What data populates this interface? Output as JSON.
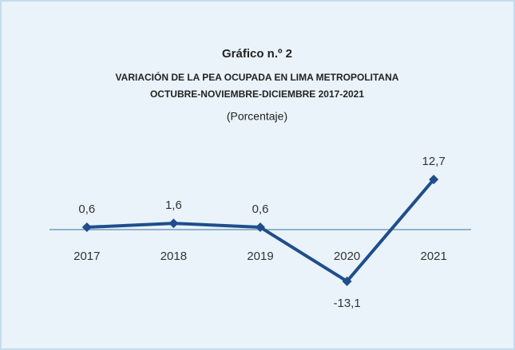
{
  "chart_data": {
    "type": "line",
    "title": "Gráfico n.º 2",
    "subtitle": [
      "VARIACIÓN DE LA PEA OCUPADA EN LIMA METROPOLITANA",
      "OCTUBRE-NOVIEMBRE-DICIEMBRE 2017-2021"
    ],
    "unit_label": "(Porcentaje)",
    "categories": [
      "2017",
      "2018",
      "2019",
      "2020",
      "2021"
    ],
    "series": [
      {
        "name": "PEA ocupada",
        "color": "#1f4e8c",
        "values": [
          0.6,
          1.6,
          0.6,
          -13.1,
          12.7
        ],
        "value_labels": [
          "0,6",
          "1,6",
          "0,6",
          "-13,1",
          "12,7"
        ]
      }
    ]
  }
}
